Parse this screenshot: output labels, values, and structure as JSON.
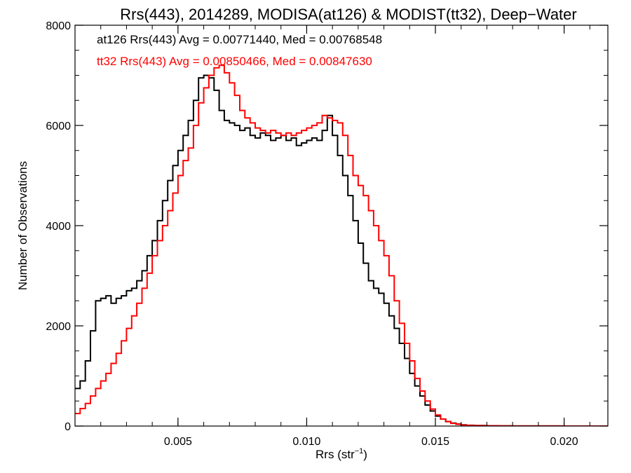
{
  "chart_data": {
    "type": "line",
    "title": "Rrs(443), 2014289, MODISA(at126) & MODIST(tt32), Deep−Water",
    "xlabel": "Rrs (str",
    "xlabel_sup": "−1",
    "xlabel_suffix": ")",
    "ylabel": "Number of Observations",
    "xlim": [
      0.001,
      0.0217
    ],
    "ylim": [
      0,
      8000
    ],
    "xticks": [
      0.005,
      0.01,
      0.015,
      0.02
    ],
    "xtick_labels": [
      "0.005",
      "0.010",
      "0.015",
      "0.020"
    ],
    "yticks": [
      0,
      2000,
      4000,
      6000,
      8000
    ],
    "ytick_labels": [
      "0",
      "2000",
      "4000",
      "6000",
      "8000"
    ],
    "grid": false,
    "annotations": [
      {
        "text": "at126 Rrs(443) Avg = 0.00771440, Med = 0.00768548",
        "color": "#000000"
      },
      {
        "text": "tt32 Rrs(443) Avg = 0.00850466, Med = 0.00847630",
        "color": "#ff0000"
      }
    ],
    "series": [
      {
        "color": "#000000",
        "x": [
          0.001,
          0.0012,
          0.0014,
          0.0016,
          0.0018,
          0.002,
          0.0022,
          0.0024,
          0.0026,
          0.0028,
          0.003,
          0.0032,
          0.0034,
          0.0036,
          0.0038,
          0.004,
          0.0042,
          0.0044,
          0.0046,
          0.0048,
          0.005,
          0.0052,
          0.0054,
          0.0056,
          0.0058,
          0.006,
          0.0062,
          0.0064,
          0.0066,
          0.0068,
          0.007,
          0.0072,
          0.0074,
          0.0076,
          0.0078,
          0.008,
          0.0082,
          0.0084,
          0.0086,
          0.0088,
          0.009,
          0.0092,
          0.0094,
          0.0096,
          0.0098,
          0.01,
          0.0102,
          0.0104,
          0.0106,
          0.0108,
          0.011,
          0.0112,
          0.0114,
          0.0116,
          0.0118,
          0.012,
          0.0122,
          0.0124,
          0.0126,
          0.0128,
          0.013,
          0.0132,
          0.0134,
          0.0136,
          0.0138,
          0.014,
          0.0142,
          0.0144,
          0.0146,
          0.0148,
          0.015,
          0.0152,
          0.0154,
          0.0156,
          0.0158,
          0.016,
          0.0162,
          0.0165,
          0.017,
          0.0175,
          0.018,
          0.019,
          0.02,
          0.0217
        ],
        "y": [
          750,
          900,
          1300,
          1900,
          2500,
          2550,
          2600,
          2450,
          2550,
          2600,
          2700,
          2750,
          2900,
          3100,
          3400,
          3700,
          4100,
          4500,
          4900,
          5200,
          5500,
          5800,
          6100,
          6500,
          6950,
          7000,
          6950,
          6700,
          6300,
          6100,
          6050,
          6000,
          5900,
          5950,
          5800,
          5750,
          5850,
          5800,
          5700,
          5750,
          5800,
          5700,
          5750,
          5600,
          5650,
          5700,
          5750,
          5700,
          5900,
          6200,
          5800,
          5400,
          5000,
          4600,
          4100,
          3650,
          3250,
          2900,
          2750,
          2650,
          2450,
          2200,
          1950,
          1650,
          1350,
          1050,
          800,
          600,
          420,
          300,
          200,
          140,
          90,
          60,
          40,
          25,
          15,
          10,
          5,
          3,
          2,
          1,
          0,
          0
        ]
      },
      {
        "color": "#ff0000",
        "x": [
          0.001,
          0.0012,
          0.0014,
          0.0016,
          0.0018,
          0.002,
          0.0022,
          0.0024,
          0.0026,
          0.0028,
          0.003,
          0.0032,
          0.0034,
          0.0036,
          0.0038,
          0.004,
          0.0042,
          0.0044,
          0.0046,
          0.0048,
          0.005,
          0.0052,
          0.0054,
          0.0056,
          0.0058,
          0.006,
          0.0062,
          0.0064,
          0.0066,
          0.0068,
          0.007,
          0.0072,
          0.0074,
          0.0076,
          0.0078,
          0.008,
          0.0082,
          0.0084,
          0.0086,
          0.0088,
          0.009,
          0.0092,
          0.0094,
          0.0096,
          0.0098,
          0.01,
          0.0102,
          0.0104,
          0.0106,
          0.0108,
          0.011,
          0.0112,
          0.0114,
          0.0116,
          0.0118,
          0.012,
          0.0122,
          0.0124,
          0.0126,
          0.0128,
          0.013,
          0.0132,
          0.0134,
          0.0136,
          0.0138,
          0.014,
          0.0142,
          0.0144,
          0.0146,
          0.0148,
          0.015,
          0.0152,
          0.0154,
          0.0156,
          0.0158,
          0.016,
          0.0162,
          0.0165,
          0.017,
          0.0175,
          0.018,
          0.019,
          0.02,
          0.0217
        ],
        "y": [
          250,
          350,
          450,
          600,
          750,
          900,
          1050,
          1250,
          1450,
          1700,
          1950,
          2200,
          2450,
          2750,
          3050,
          3400,
          3700,
          4000,
          4300,
          4650,
          5000,
          5300,
          5550,
          6000,
          6450,
          6750,
          7000,
          7150,
          7200,
          7050,
          6850,
          6600,
          6300,
          6150,
          6050,
          5950,
          5900,
          5850,
          5900,
          5850,
          5800,
          5850,
          5800,
          5850,
          5900,
          5950,
          6000,
          6050,
          6200,
          6150,
          6100,
          6050,
          5800,
          5400,
          5000,
          4800,
          4600,
          4300,
          4000,
          3700,
          3400,
          3000,
          2500,
          2050,
          1650,
          1300,
          950,
          700,
          500,
          340,
          220,
          140,
          90,
          55,
          35,
          20,
          12,
          8,
          5,
          3,
          2,
          1,
          0,
          0
        ]
      }
    ]
  }
}
